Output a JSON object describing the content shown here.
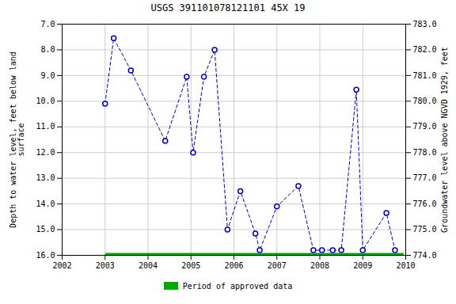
{
  "chart_data": {
    "type": "line",
    "title": "USGS 391101078121101 45X 19",
    "ylabel": "Depth to water level, feet below land\nsurface",
    "y2label": "Groundwater level above NGVD 1929, feet",
    "xlim": [
      2002,
      2010
    ],
    "xticks": [
      2002,
      2003,
      2004,
      2005,
      2006,
      2007,
      2008,
      2009,
      2010
    ],
    "ylim": [
      16.0,
      7.0
    ],
    "yticks": [
      {
        "value": 7.0,
        "label": "7.0"
      },
      {
        "value": 8.0,
        "label": "8.0"
      },
      {
        "value": 9.0,
        "label": "9.0"
      },
      {
        "value": 10.0,
        "label": "10.0"
      },
      {
        "value": 11.0,
        "label": "11.0"
      },
      {
        "value": 12.0,
        "label": "12.0"
      },
      {
        "value": 13.0,
        "label": "13.0"
      },
      {
        "value": 14.0,
        "label": "14.0"
      },
      {
        "value": 15.0,
        "label": "15.0"
      },
      {
        "value": 16.0,
        "label": "16.0"
      }
    ],
    "y2lim": [
      774.0,
      783.0
    ],
    "y2ticks": [
      {
        "value": 774.0,
        "label": "774.0"
      },
      {
        "value": 775.0,
        "label": "775.0"
      },
      {
        "value": 776.0,
        "label": "776.0"
      },
      {
        "value": 777.0,
        "label": "777.0"
      },
      {
        "value": 778.0,
        "label": "778.0"
      },
      {
        "value": 779.0,
        "label": "779.0"
      },
      {
        "value": 780.0,
        "label": "780.0"
      },
      {
        "value": 781.0,
        "label": "781.0"
      },
      {
        "value": 782.0,
        "label": "782.0"
      },
      {
        "value": 783.0,
        "label": "783.0"
      }
    ],
    "grid": true,
    "legend": "bottom",
    "series": [
      {
        "color": "#0000CC",
        "line_style": "dashed",
        "marker": "open_circle",
        "x": [
          2003.0,
          2003.2,
          2003.6,
          2004.4,
          2004.9,
          2005.05,
          2005.3,
          2005.55,
          2005.85,
          2006.15,
          2006.5,
          2006.6,
          2007.0,
          2007.5,
          2007.85,
          2008.05,
          2008.3,
          2008.5,
          2008.85,
          2009.0,
          2009.55,
          2009.75
        ],
        "values": [
          10.1,
          7.55,
          8.8,
          11.55,
          9.05,
          12.0,
          9.05,
          8.0,
          15.0,
          13.5,
          15.15,
          15.8,
          14.1,
          13.3,
          15.8,
          15.8,
          15.8,
          15.8,
          9.55,
          15.8,
          14.35,
          15.8
        ]
      },
      {
        "name": "Period of approved data",
        "color": "#00AA00",
        "line_style": "thick",
        "marker": "none",
        "x": [
          2003.0,
          2009.95
        ],
        "values": [
          16.0,
          16.0
        ]
      }
    ]
  }
}
